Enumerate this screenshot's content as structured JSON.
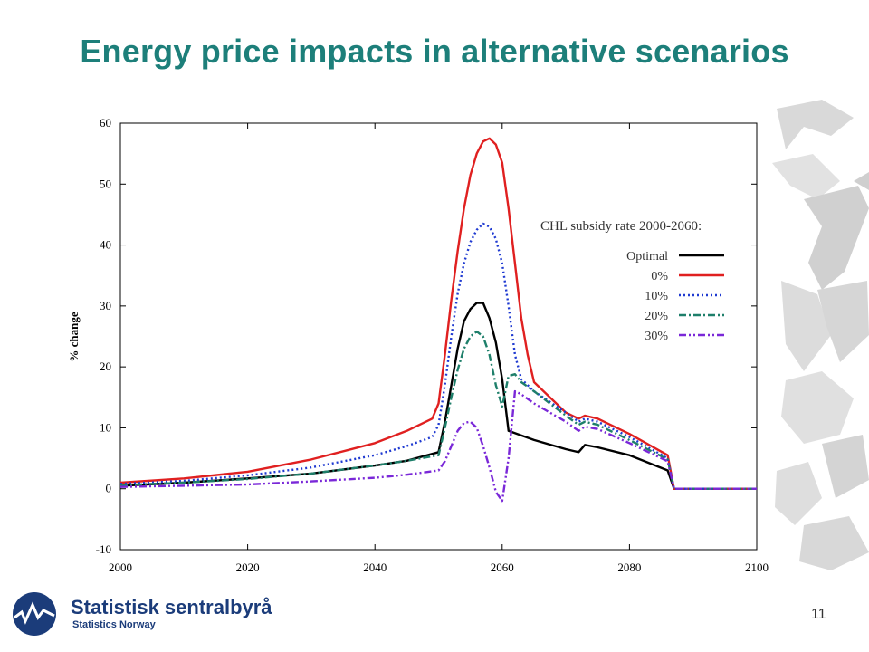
{
  "slide": {
    "title": "Energy price impacts in alternative scenarios",
    "page_number": "11",
    "title_color": "#1d7f7a"
  },
  "footer": {
    "logo_name": "Statistisk sentralbyrå",
    "logo_subtitle": "Statistics Norway",
    "logo_color": "#1b3c7a"
  },
  "chart_data": {
    "type": "line",
    "ylabel": "% change",
    "xlim": [
      2000,
      2100
    ],
    "ylim": [
      -10,
      60
    ],
    "x_ticks": [
      2000,
      2020,
      2040,
      2060,
      2080,
      2100
    ],
    "y_ticks": [
      -10,
      0,
      10,
      20,
      30,
      40,
      50,
      60
    ],
    "legend_title": "CHL subsidy rate 2000-2060:",
    "legend_position": "right",
    "grid": false,
    "series": [
      {
        "name": "Optimal",
        "color": "#000000",
        "dash": "solid",
        "points": [
          [
            2000,
            0.5
          ],
          [
            2010,
            1.0
          ],
          [
            2020,
            1.7
          ],
          [
            2030,
            2.5
          ],
          [
            2040,
            3.8
          ],
          [
            2045,
            4.6
          ],
          [
            2050,
            6.0
          ],
          [
            2051,
            11.0
          ],
          [
            2052,
            17.0
          ],
          [
            2053,
            23.0
          ],
          [
            2054,
            27.5
          ],
          [
            2055,
            29.5
          ],
          [
            2056,
            30.5
          ],
          [
            2057,
            30.5
          ],
          [
            2058,
            28.0
          ],
          [
            2059,
            24.0
          ],
          [
            2060,
            18.0
          ],
          [
            2061,
            9.5
          ],
          [
            2065,
            8.0
          ],
          [
            2070,
            6.5
          ],
          [
            2072,
            6.0
          ],
          [
            2073,
            7.2
          ],
          [
            2075,
            6.8
          ],
          [
            2080,
            5.5
          ],
          [
            2086,
            3.0
          ],
          [
            2087,
            0.0
          ],
          [
            2100,
            0.0
          ]
        ]
      },
      {
        "name": "0%",
        "color": "#e02020",
        "dash": "solid",
        "points": [
          [
            2000,
            1.0
          ],
          [
            2010,
            1.7
          ],
          [
            2020,
            2.8
          ],
          [
            2030,
            4.8
          ],
          [
            2040,
            7.5
          ],
          [
            2045,
            9.5
          ],
          [
            2049,
            11.5
          ],
          [
            2050,
            14.0
          ],
          [
            2051,
            22.0
          ],
          [
            2052,
            31.0
          ],
          [
            2053,
            39.0
          ],
          [
            2054,
            46.0
          ],
          [
            2055,
            51.5
          ],
          [
            2056,
            55.0
          ],
          [
            2057,
            57.0
          ],
          [
            2058,
            57.5
          ],
          [
            2059,
            56.5
          ],
          [
            2060,
            53.5
          ],
          [
            2061,
            46.0
          ],
          [
            2062,
            37.0
          ],
          [
            2063,
            28.0
          ],
          [
            2064,
            22.0
          ],
          [
            2065,
            17.5
          ],
          [
            2068,
            14.5
          ],
          [
            2070,
            12.5
          ],
          [
            2072,
            11.5
          ],
          [
            2073,
            12.0
          ],
          [
            2075,
            11.5
          ],
          [
            2080,
            9.0
          ],
          [
            2086,
            5.5
          ],
          [
            2087,
            0.0
          ],
          [
            2100,
            0.0
          ]
        ]
      },
      {
        "name": "10%",
        "color": "#1f3ad1",
        "dash": "dotted",
        "points": [
          [
            2000,
            0.8
          ],
          [
            2010,
            1.3
          ],
          [
            2020,
            2.2
          ],
          [
            2030,
            3.5
          ],
          [
            2040,
            5.5
          ],
          [
            2045,
            7.0
          ],
          [
            2049,
            8.5
          ],
          [
            2050,
            10.5
          ],
          [
            2051,
            17.0
          ],
          [
            2052,
            25.0
          ],
          [
            2053,
            32.0
          ],
          [
            2054,
            37.0
          ],
          [
            2055,
            40.5
          ],
          [
            2056,
            42.5
          ],
          [
            2057,
            43.5
          ],
          [
            2058,
            43.0
          ],
          [
            2059,
            41.0
          ],
          [
            2060,
            37.0
          ],
          [
            2061,
            30.0
          ],
          [
            2062,
            22.0
          ],
          [
            2063,
            18.0
          ],
          [
            2065,
            16.0
          ],
          [
            2070,
            12.5
          ],
          [
            2072,
            11.0
          ],
          [
            2073,
            11.5
          ],
          [
            2075,
            11.0
          ],
          [
            2080,
            8.5
          ],
          [
            2086,
            5.0
          ],
          [
            2087,
            0.0
          ],
          [
            2100,
            0.0
          ]
        ]
      },
      {
        "name": "20%",
        "color": "#1e7f6a",
        "dash": "dashdot",
        "points": [
          [
            2000,
            0.6
          ],
          [
            2010,
            1.0
          ],
          [
            2020,
            1.6
          ],
          [
            2030,
            2.5
          ],
          [
            2040,
            3.8
          ],
          [
            2045,
            4.6
          ],
          [
            2050,
            5.5
          ],
          [
            2051,
            10.0
          ],
          [
            2052,
            15.0
          ],
          [
            2053,
            19.5
          ],
          [
            2054,
            23.0
          ],
          [
            2055,
            25.0
          ],
          [
            2056,
            25.8
          ],
          [
            2057,
            25.0
          ],
          [
            2058,
            22.0
          ],
          [
            2059,
            17.0
          ],
          [
            2060,
            13.5
          ],
          [
            2061,
            18.5
          ],
          [
            2062,
            18.8
          ],
          [
            2063,
            17.5
          ],
          [
            2065,
            16.0
          ],
          [
            2070,
            12.0
          ],
          [
            2072,
            10.5
          ],
          [
            2073,
            11.0
          ],
          [
            2075,
            10.5
          ],
          [
            2080,
            8.0
          ],
          [
            2086,
            4.8
          ],
          [
            2087,
            0.0
          ],
          [
            2100,
            0.0
          ]
        ]
      },
      {
        "name": "30%",
        "color": "#7a28d8",
        "dash": "dashdotdot",
        "points": [
          [
            2000,
            0.3
          ],
          [
            2010,
            0.5
          ],
          [
            2020,
            0.7
          ],
          [
            2030,
            1.2
          ],
          [
            2040,
            1.8
          ],
          [
            2045,
            2.3
          ],
          [
            2050,
            3.0
          ],
          [
            2051,
            4.5
          ],
          [
            2052,
            7.0
          ],
          [
            2053,
            9.5
          ],
          [
            2054,
            10.8
          ],
          [
            2055,
            11.0
          ],
          [
            2056,
            10.0
          ],
          [
            2057,
            7.0
          ],
          [
            2058,
            3.5
          ],
          [
            2059,
            -0.5
          ],
          [
            2060,
            -2.0
          ],
          [
            2061,
            5.0
          ],
          [
            2062,
            16.0
          ],
          [
            2063,
            15.5
          ],
          [
            2065,
            14.0
          ],
          [
            2070,
            11.0
          ],
          [
            2072,
            9.5
          ],
          [
            2073,
            10.2
          ],
          [
            2075,
            9.8
          ],
          [
            2080,
            7.5
          ],
          [
            2086,
            4.5
          ],
          [
            2087,
            0.0
          ],
          [
            2100,
            0.0
          ]
        ]
      }
    ]
  }
}
